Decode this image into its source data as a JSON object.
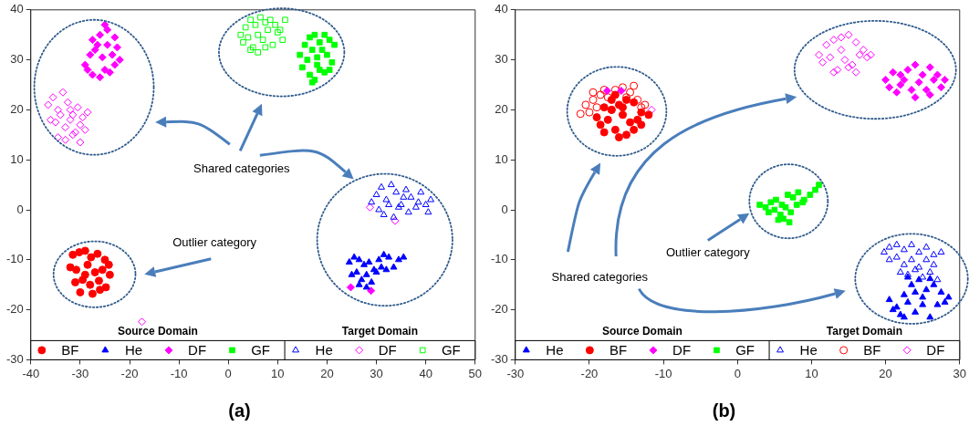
{
  "chart_data": [
    {
      "type": "scatter",
      "title": "(a)",
      "xlim": [
        -40,
        50
      ],
      "ylim": [
        -30,
        40
      ],
      "xticks": [
        -40,
        -30,
        -20,
        -10,
        0,
        10,
        20,
        30,
        40,
        50
      ],
      "yticks": [
        -30,
        -20,
        -10,
        0,
        10,
        20,
        30,
        40
      ],
      "grid": false,
      "legend": "bottom",
      "annotations": [
        "Shared categories",
        "Outlier category",
        "Source Domain",
        "Target Domain"
      ],
      "series": [
        {
          "name": "BF",
          "color": "#ff0000",
          "marker": "circle",
          "x": [
            -31.5,
            -30.2,
            -29,
            -27.8,
            -26.5,
            -25,
            -24.2,
            -32,
            -30.8,
            -28.5,
            -27,
            -25.5,
            -24,
            -31,
            -29.5,
            -28,
            -26.2,
            -24.8,
            -30,
            -27.5,
            -26,
            -29
          ],
          "values": [
            -9,
            -8.5,
            -8.2,
            -9.5,
            -8.8,
            -10,
            -11,
            -11.5,
            -12,
            -11,
            -12.5,
            -12,
            -13,
            -14.5,
            -14,
            -15,
            -14.2,
            -15.5,
            -16.5,
            -16.8,
            -16,
            -13
          ]
        },
        {
          "name": "He",
          "color": "#0000ff",
          "marker": "triangle",
          "x": [
            24.5,
            25.5,
            26.5,
            27.5,
            28.5,
            29.5,
            30.5,
            31.5,
            32.5,
            33.5,
            34.5,
            35.5,
            25,
            26,
            27,
            28,
            29,
            30,
            31,
            32,
            26.5,
            28
          ],
          "values": [
            -10.5,
            -9.5,
            -10,
            -11,
            -10.5,
            -12,
            -10,
            -9,
            -9.5,
            -11.5,
            -10,
            -9.5,
            -13,
            -12.5,
            -14,
            -13,
            -14.5,
            -12.5,
            -11.5,
            -12,
            -15,
            -15.5
          ]
        },
        {
          "name": "DF",
          "color": "#ff00ff",
          "marker": "diamond",
          "x": [
            -28.5,
            -27.5,
            -26,
            -25,
            -24,
            -23,
            -22,
            -28,
            -27,
            -25.5,
            -24.5,
            -23.5,
            -22.5,
            -29,
            -27.5,
            -26,
            -24.5,
            -23,
            -25,
            -26.5,
            24.8,
            28.9
          ],
          "values": [
            28,
            27,
            26.5,
            28,
            27.5,
            29,
            30,
            31,
            32,
            30.5,
            33,
            31,
            32.5,
            29,
            34,
            35,
            36,
            34.5,
            37,
            33,
            -15.5,
            -16.2
          ]
        },
        {
          "name": "GF",
          "color": "#00ff00",
          "marker": "square",
          "x": [
            14.5,
            15.5,
            16.5,
            17.5,
            18.5,
            19.5,
            20.5,
            21.5,
            15,
            16,
            17,
            18,
            19,
            20,
            21,
            16.5,
            17.5,
            18.5,
            19.5,
            17,
            20.5,
            18
          ],
          "values": [
            31,
            33,
            34.5,
            35,
            33.5,
            35,
            34,
            33,
            28.5,
            30,
            32,
            30.5,
            32,
            31,
            29.5,
            27,
            26,
            28,
            27.5,
            25.5,
            28,
            29
          ]
        },
        {
          "name": "He",
          "color": "#0000ff",
          "marker": "triangle",
          "x": [
            29,
            30,
            31,
            32,
            33,
            34,
            35,
            36,
            37,
            38,
            39,
            40,
            41,
            30.5,
            31.5,
            32.5,
            33.5,
            34.5,
            35.5,
            36.5,
            38.5,
            40.5
          ],
          "values": [
            1.5,
            3,
            4.5,
            2,
            5,
            3.5,
            1,
            4,
            2.5,
            0.5,
            3.5,
            1,
            2,
            0,
            -1,
            1,
            -1.5,
            0.5,
            2.5,
            -0.5,
            1.5,
            -0.5
          ]
        },
        {
          "name": "DF",
          "color": "#ff00ff",
          "marker": "diamond",
          "x": [
            -36.5,
            -35.5,
            -34.5,
            -33.5,
            -32.5,
            -31.5,
            -30.5,
            -29.5,
            -28.5,
            -36,
            -35,
            -34,
            -33,
            -32,
            -31,
            -30,
            -29,
            -34.5,
            -33,
            -31.5,
            -30,
            -32,
            28.7,
            33.8,
            -17.5
          ],
          "values": [
            21,
            22.5,
            20,
            23.5,
            21.5,
            19,
            20.5,
            18.5,
            19.5,
            18,
            17.5,
            19,
            16.5,
            18,
            15.5,
            17,
            16,
            14.5,
            14,
            15,
            13.5,
            20,
            0.5,
            -2.2,
            -22.4
          ]
        },
        {
          "name": "GF",
          "color": "#00ff00",
          "marker": "square",
          "x": [
            2.5,
            3.5,
            4.5,
            5.5,
            6.5,
            7.5,
            8.5,
            9.5,
            10.5,
            11.5,
            3,
            4,
            5,
            6,
            7,
            8,
            9,
            10,
            11,
            4.5,
            6,
            7.5
          ],
          "values": [
            35,
            36.5,
            38,
            37,
            38.5,
            37.5,
            38,
            37,
            36,
            38,
            33.5,
            34.5,
            32.5,
            35,
            34,
            36,
            33,
            35.5,
            34,
            32,
            31.5,
            32.5
          ]
        }
      ]
    },
    {
      "type": "scatter",
      "title": "(b)",
      "xlim": [
        -30,
        30
      ],
      "ylim": [
        -30,
        40
      ],
      "xticks": [
        -30,
        -20,
        -10,
        0,
        10,
        20,
        30
      ],
      "yticks": [
        -30,
        -20,
        -10,
        0,
        10,
        20,
        30,
        40
      ],
      "grid": false,
      "legend": "bottom",
      "annotations": [
        "Shared categories",
        "Outlier category",
        "Source Domain",
        "Target Domain"
      ],
      "series": [
        {
          "name": "He",
          "color": "#0000ff",
          "marker": "triangle",
          "x": [
            20.5,
            21.5,
            22.5,
            23.5,
            24.5,
            25.5,
            26.5,
            27.5,
            28.5,
            21,
            22,
            23,
            24,
            25,
            26,
            27,
            28,
            23,
            24,
            25,
            26,
            22.5
          ],
          "values": [
            -18,
            -19.5,
            -17,
            -15,
            -14,
            -16,
            -15,
            -16.5,
            -17.5,
            -20,
            -21,
            -18.5,
            -20.5,
            -19,
            -21.5,
            -19,
            -18.5,
            -13.5,
            -16.5,
            -17.5,
            -13.8,
            -21.5
          ]
        },
        {
          "name": "BF",
          "color": "#ff0000",
          "marker": "circle",
          "x": [
            -19,
            -18,
            -17,
            -16,
            -15,
            -14,
            -13,
            -12,
            -18.5,
            -17.5,
            -16.5,
            -15.5,
            -14.5,
            -13.5,
            -18,
            -16,
            -15,
            -14,
            -17,
            -15.5,
            -16.5,
            -13
          ],
          "values": [
            18.5,
            20.5,
            22,
            21,
            22,
            21.5,
            19.5,
            19,
            17,
            18,
            16,
            19,
            17.5,
            18,
            15.5,
            14.5,
            15,
            16,
            20,
            20.5,
            23,
            17
          ]
        },
        {
          "name": "DF",
          "color": "#ff00ff",
          "marker": "diamond",
          "x": [
            -17.6,
            -15.7,
            20,
            21,
            22,
            23,
            24,
            25,
            26,
            27,
            28,
            20.5,
            21.5,
            22.5,
            23.5,
            24.5,
            25.5,
            26.5,
            27.5,
            22,
            24,
            26
          ],
          "values": [
            23.8,
            23.8,
            26,
            27.5,
            25,
            28,
            29,
            27,
            28.5,
            27,
            26,
            24.5,
            23.5,
            26,
            24,
            25.5,
            24,
            26,
            24.5,
            27,
            22.5,
            23
          ]
        },
        {
          "name": "GF",
          "color": "#00ff00",
          "marker": "square",
          "x": [
            3,
            3.8,
            4.5,
            5.2,
            6,
            6.8,
            7.5,
            8.2,
            9,
            9.8,
            10.5,
            11,
            4.2,
            5,
            5.8,
            6.5,
            7.2,
            8,
            8.8,
            5.5,
            7,
            6.2
          ],
          "values": [
            1,
            0.5,
            1.5,
            2,
            1,
            3,
            2.5,
            3.5,
            2,
            3,
            4,
            5,
            -0.5,
            0,
            -1,
            0.5,
            -0.5,
            1,
            1.5,
            -2,
            -2.5,
            -1.8
          ]
        },
        {
          "name": "He",
          "color": "#0000ff",
          "marker": "triangle",
          "x": [
            19.8,
            20.5,
            21.5,
            22.5,
            23.5,
            24.5,
            25.5,
            26.5,
            27.5,
            20.5,
            21.5,
            22.5,
            23.5,
            24.5,
            25.5,
            26.5,
            22,
            23,
            24,
            25,
            26,
            27
          ],
          "values": [
            -8.5,
            -7.5,
            -7,
            -8,
            -7,
            -8.5,
            -7.5,
            -9,
            -8.5,
            -10,
            -9.5,
            -11,
            -10,
            -11.5,
            -10,
            -11,
            -12.5,
            -13,
            -12,
            -13.5,
            -12.5,
            -14
          ]
        },
        {
          "name": "BF",
          "color": "#ff0000",
          "marker": "circle",
          "x": [
            -20.5,
            -19.5,
            -18.5,
            -17.5,
            -16.5,
            -15.5,
            -14.5,
            -13.5,
            -12.5,
            -20,
            -19,
            -18,
            -14,
            -13,
            -15,
            -17,
            -21.2,
            -19.5
          ],
          "values": [
            21,
            22,
            23,
            22.5,
            24,
            24.5,
            23.5,
            22,
            21,
            19.5,
            20.5,
            24,
            24.8,
            20.5,
            22.5,
            20,
            19.2,
            23.5
          ]
        },
        {
          "name": "DF",
          "color": "#ff00ff",
          "marker": "diamond",
          "x": [
            -11.6,
            11,
            12,
            13,
            14,
            15,
            16,
            17,
            18,
            11.5,
            12.5,
            13.5,
            14.5,
            15.5,
            16.5,
            17.5,
            13,
            15,
            14,
            16
          ],
          "values": [
            20,
            31,
            33,
            34,
            32,
            35,
            33.5,
            32,
            31,
            29.5,
            30.5,
            28,
            30,
            29,
            31,
            30.5,
            27.5,
            28.5,
            34.5,
            27.5
          ]
        }
      ]
    }
  ]
}
